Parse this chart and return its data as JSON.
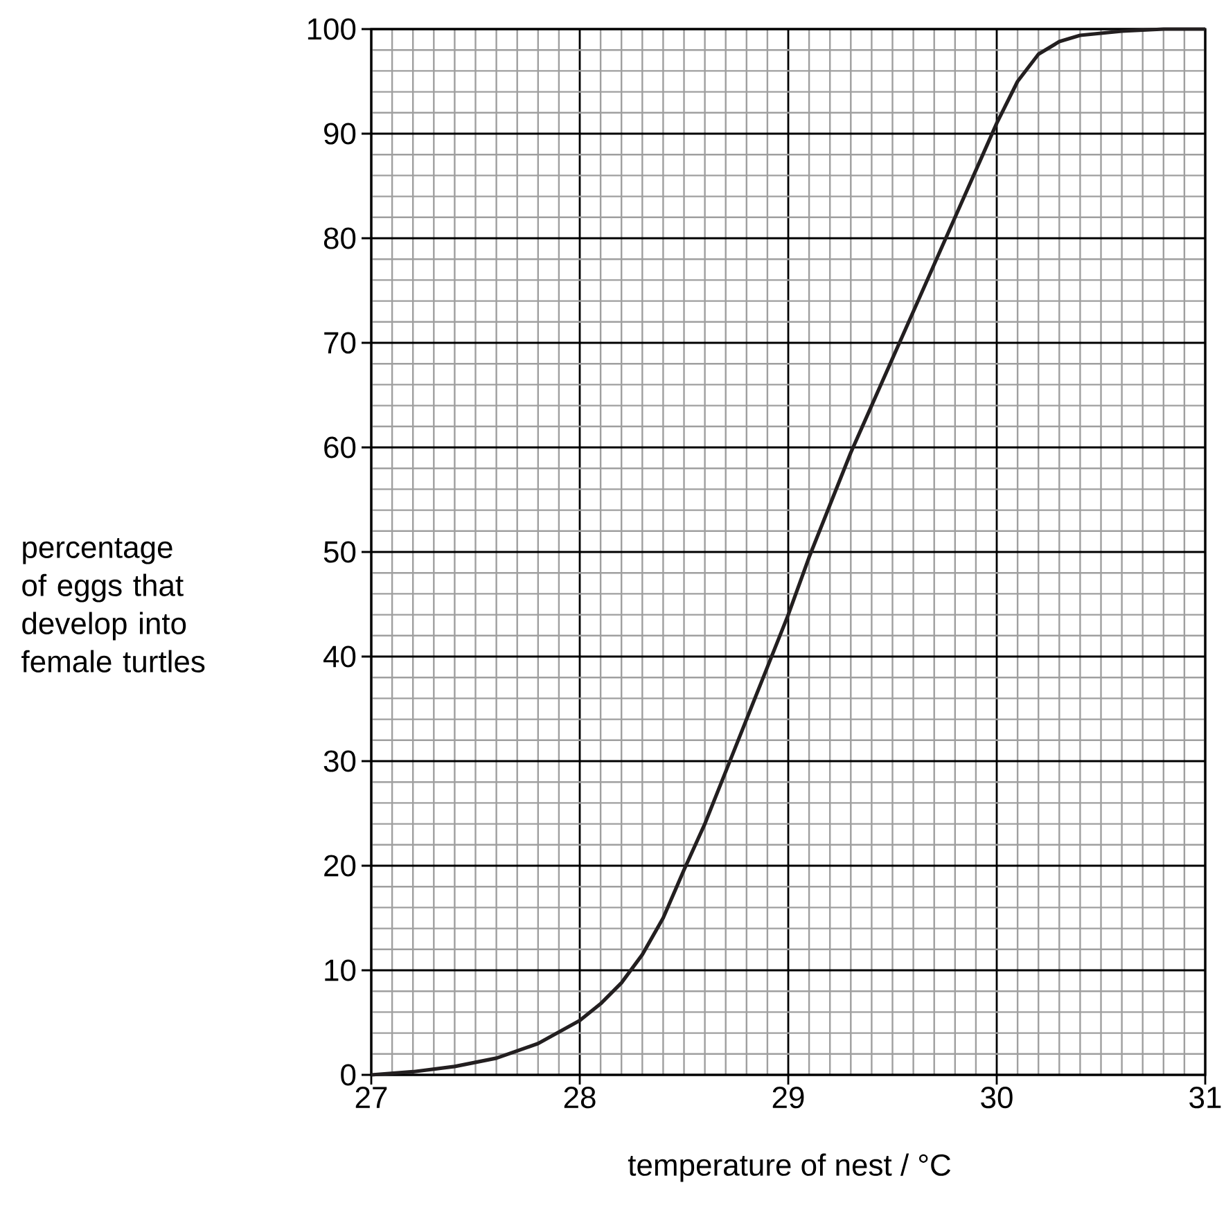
{
  "chart_data": {
    "type": "line",
    "xlabel": "temperature of nest / °C",
    "ylabel": "percentage of eggs that develop into female turtles",
    "x": [
      27.0,
      27.2,
      27.4,
      27.6,
      27.8,
      28.0,
      28.1,
      28.2,
      28.3,
      28.4,
      28.5,
      28.6,
      28.7,
      28.8,
      28.9,
      29.0,
      29.1,
      29.2,
      29.3,
      29.4,
      29.5,
      29.6,
      29.7,
      29.8,
      29.9,
      30.0,
      30.1,
      30.2,
      30.3,
      30.4,
      30.6,
      30.8,
      31.0
    ],
    "series": [
      {
        "color": "#231f20",
        "values": [
          0,
          0.3,
          0.8,
          1.6,
          3.0,
          5.2,
          6.8,
          8.8,
          11.5,
          15,
          19.6,
          24,
          29,
          34,
          39,
          44,
          49.5,
          54.5,
          59.5,
          64,
          68.5,
          73,
          77.5,
          82,
          86.5,
          91,
          95,
          97.6,
          98.8,
          99.4,
          99.8,
          100,
          100
        ]
      }
    ],
    "xlim": [
      27,
      31
    ],
    "ylim": [
      0,
      100
    ],
    "xticks": [
      27,
      28,
      29,
      30,
      31
    ],
    "yticks": [
      0,
      10,
      20,
      30,
      40,
      50,
      60,
      70,
      80,
      90,
      100
    ],
    "grid": true,
    "marker": "none",
    "line_style": "solid"
  }
}
